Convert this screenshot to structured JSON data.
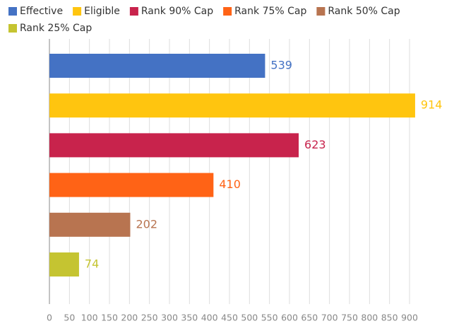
{
  "chart_data": {
    "type": "bar",
    "orientation": "horizontal",
    "series": [
      {
        "name": "Effective",
        "color": "#4472c4",
        "values": [
          539
        ]
      },
      {
        "name": "Eligible",
        "color": "#ffc50f",
        "values": [
          914
        ]
      },
      {
        "name": "Rank 90% Cap",
        "color": "#c8234c",
        "values": [
          623
        ]
      },
      {
        "name": "Rank 75% Cap",
        "color": "#ff6316",
        "values": [
          410
        ]
      },
      {
        "name": "Rank 50% Cap",
        "color": "#b87450",
        "values": [
          202
        ]
      },
      {
        "name": "Rank 25% Cap",
        "color": "#c5c431",
        "values": [
          74
        ]
      }
    ],
    "xlim": [
      0,
      900
    ],
    "xticks": [
      0,
      50,
      100,
      150,
      200,
      250,
      300,
      350,
      400,
      450,
      500,
      550,
      600,
      650,
      700,
      750,
      800,
      850,
      900
    ],
    "grid": true,
    "legend": "top"
  }
}
